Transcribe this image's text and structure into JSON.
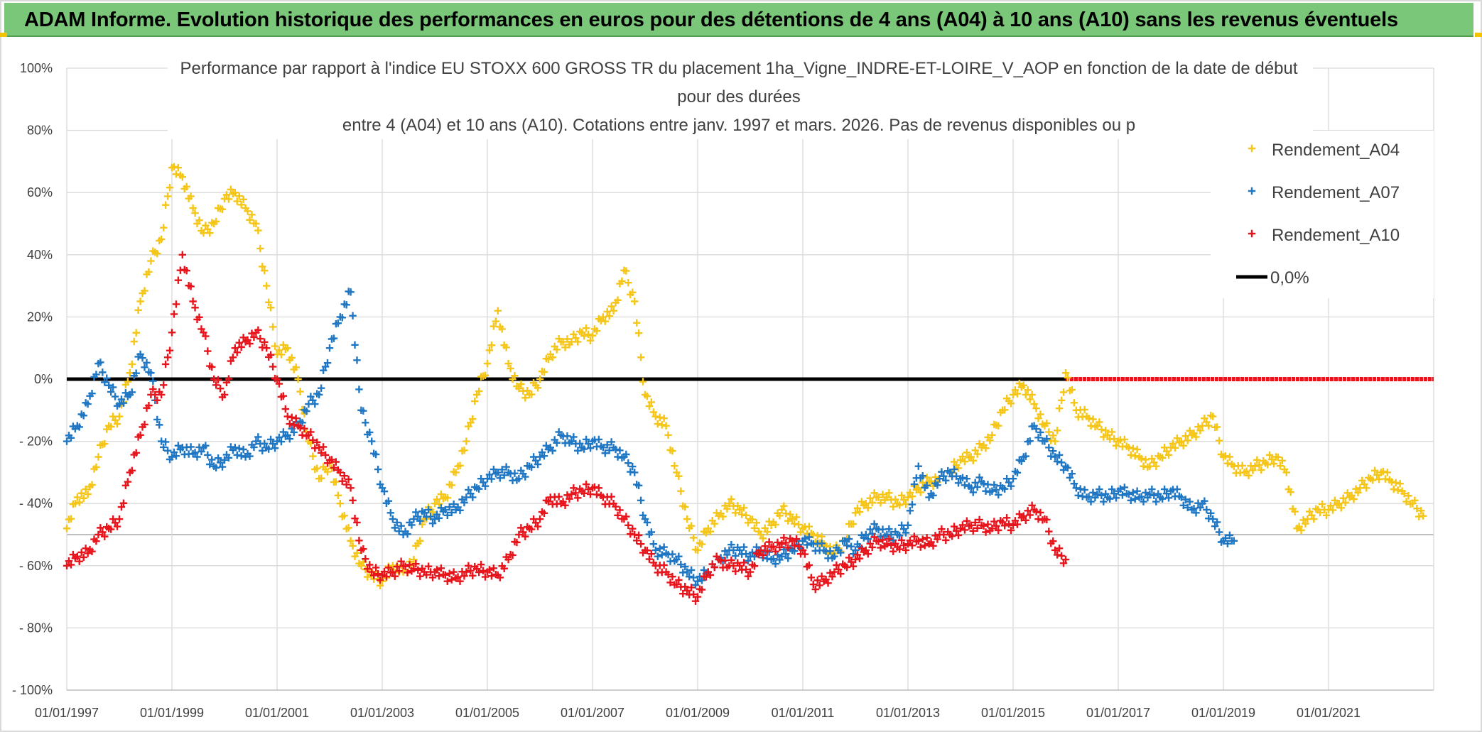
{
  "header": {
    "title": "ADAM Informe. Evolution historique des performances en euros pour des détentions de 4 ans (A04) à 10 ans (A10) sans les revenus éventuels"
  },
  "colors": {
    "banner": "#7ac77a",
    "a04": "#f5c518",
    "a07": "#1f77c4",
    "a10": "#e8141c",
    "zero": "#000000",
    "grid": "#d9d9d9"
  },
  "chart_data": {
    "type": "scatter",
    "title_lines": [
      "Performance par rapport à l'indice EU STOXX 600 GROSS TR  du placement 1ha_Vigne_INDRE-ET-LOIRE_V_AOP en fonction de la date de début",
      "pour des durées",
      "entre 4 (A04) et 10 ans (A10). Cotations entre janv. 1997 et mars. 2026. Pas de revenus disponibles ou p"
    ],
    "xlabel": "",
    "ylabel": "",
    "x_range": [
      1997.0,
      2023.0
    ],
    "ylim": [
      -100,
      100
    ],
    "y_ticks": [
      {
        "value": 100,
        "label": "100%"
      },
      {
        "value": 80,
        "label": "80%"
      },
      {
        "value": 60,
        "label": "60%"
      },
      {
        "value": 40,
        "label": "40%"
      },
      {
        "value": 20,
        "label": "20%"
      },
      {
        "value": 0,
        "label": "0%"
      },
      {
        "value": -20,
        "label": "- 20%"
      },
      {
        "value": -40,
        "label": "- 40%"
      },
      {
        "value": -60,
        "label": "- 60%"
      },
      {
        "value": -80,
        "label": "- 80%"
      },
      {
        "value": -100,
        "label": "- 100%"
      }
    ],
    "x_ticks": [
      {
        "value": 1997.0,
        "label": "01/01/1997"
      },
      {
        "value": 1999.0,
        "label": "01/01/1999"
      },
      {
        "value": 2001.0,
        "label": "01/01/2001"
      },
      {
        "value": 2003.0,
        "label": "01/01/2003"
      },
      {
        "value": 2005.0,
        "label": "01/01/2005"
      },
      {
        "value": 2007.0,
        "label": "01/01/2007"
      },
      {
        "value": 2009.0,
        "label": "01/01/2009"
      },
      {
        "value": 2011.0,
        "label": "01/01/2011"
      },
      {
        "value": 2013.0,
        "label": "01/01/2013"
      },
      {
        "value": 2015.0,
        "label": "01/01/2015"
      },
      {
        "value": 2017.0,
        "label": "01/01/2017"
      },
      {
        "value": 2019.0,
        "label": "01/01/2019"
      },
      {
        "value": 2021.0,
        "label": "01/01/2021"
      }
    ],
    "legend_position": "top-right",
    "series": [
      {
        "name": "Rendement_A04",
        "color": "#f5c518",
        "x": [
          1997.0,
          1997.2,
          1997.4,
          1997.6,
          1997.8,
          1998.0,
          1998.2,
          1998.4,
          1998.6,
          1998.8,
          1999.0,
          1999.2,
          1999.4,
          1999.6,
          1999.8,
          2000.0,
          2000.2,
          2000.4,
          2000.6,
          2000.8,
          2001.0,
          2001.2,
          2001.4,
          2001.6,
          2001.8,
          2002.0,
          2002.2,
          2002.4,
          2002.6,
          2002.8,
          2003.0,
          2003.2,
          2003.4,
          2003.6,
          2003.8,
          2004.0,
          2004.2,
          2004.4,
          2004.6,
          2004.8,
          2005.0,
          2005.2,
          2005.4,
          2005.6,
          2005.8,
          2006.0,
          2006.2,
          2006.4,
          2006.6,
          2006.8,
          2007.0,
          2007.2,
          2007.4,
          2007.6,
          2007.8,
          2008.0,
          2008.2,
          2008.4,
          2008.6,
          2008.8,
          2009.0,
          2009.2,
          2009.4,
          2009.6,
          2009.8,
          2010.0,
          2010.2,
          2010.4,
          2010.6,
          2010.8,
          2011.0,
          2011.2,
          2011.4,
          2011.6,
          2011.8,
          2012.0,
          2012.2,
          2012.4,
          2012.6,
          2012.8,
          2013.0,
          2013.2,
          2013.4,
          2013.6,
          2013.8,
          2014.0,
          2014.2,
          2014.4,
          2014.6,
          2014.8,
          2015.0,
          2015.2,
          2015.4,
          2015.6,
          2015.8,
          2016.0,
          2016.2,
          2016.4,
          2016.6,
          2016.8,
          2017.0,
          2017.2,
          2017.4,
          2017.6,
          2017.8,
          2018.0,
          2018.2,
          2018.4,
          2018.6,
          2018.8,
          2019.0,
          2019.2,
          2019.4,
          2019.6,
          2019.8,
          2020.0,
          2020.2,
          2020.4,
          2020.6,
          2020.8,
          2021.0,
          2021.2,
          2021.4,
          2021.6,
          2021.8,
          2022.0,
          2022.2,
          2022.4,
          2022.6,
          2022.8
        ],
        "values": [
          -48,
          -38,
          -37,
          -25,
          -15,
          -12,
          2,
          25,
          38,
          45,
          68,
          65,
          55,
          47,
          50,
          58,
          60,
          55,
          50,
          30,
          8,
          10,
          0,
          -20,
          -32,
          -27,
          -40,
          -52,
          -60,
          -63,
          -65,
          -60,
          -62,
          -58,
          -45,
          -40,
          -38,
          -30,
          -20,
          -5,
          5,
          22,
          5,
          -3,
          -5,
          0,
          8,
          12,
          12,
          15,
          14,
          20,
          22,
          35,
          25,
          -5,
          -12,
          -15,
          -30,
          -45,
          -55,
          -48,
          -44,
          -40,
          -42,
          -45,
          -50,
          -47,
          -42,
          -45,
          -48,
          -50,
          -53,
          -56,
          -52,
          -43,
          -40,
          -38,
          -38,
          -40,
          -38,
          -35,
          -33,
          -32,
          -30,
          -26,
          -25,
          -22,
          -18,
          -10,
          -5,
          -2,
          -8,
          -15,
          -20,
          2,
          -10,
          -12,
          -15,
          -18,
          -20,
          -22,
          -25,
          -28,
          -25,
          -22,
          -20,
          -18,
          -15,
          -12,
          -25,
          -28,
          -30,
          -28,
          -27,
          -25,
          -30,
          -48,
          -45,
          -42,
          -42,
          -40,
          -38,
          -35,
          -32,
          -30,
          -33,
          -36,
          -40,
          -44
        ]
      },
      {
        "name": "Rendement_A07",
        "color": "#1f77c4",
        "x": [
          1997.0,
          1997.2,
          1997.4,
          1997.6,
          1997.8,
          1998.0,
          1998.2,
          1998.4,
          1998.6,
          1998.8,
          1999.0,
          1999.2,
          1999.4,
          1999.6,
          1999.8,
          2000.0,
          2000.2,
          2000.4,
          2000.6,
          2000.8,
          2001.0,
          2001.2,
          2001.4,
          2001.6,
          2001.8,
          2002.0,
          2002.2,
          2002.4,
          2002.6,
          2002.8,
          2003.0,
          2003.2,
          2003.4,
          2003.6,
          2003.8,
          2004.0,
          2004.2,
          2004.4,
          2004.6,
          2004.8,
          2005.0,
          2005.2,
          2005.4,
          2005.6,
          2005.8,
          2006.0,
          2006.2,
          2006.4,
          2006.6,
          2006.8,
          2007.0,
          2007.2,
          2007.4,
          2007.6,
          2007.8,
          2008.0,
          2008.2,
          2008.4,
          2008.6,
          2008.8,
          2009.0,
          2009.2,
          2009.4,
          2009.6,
          2009.8,
          2010.0,
          2010.2,
          2010.4,
          2010.6,
          2010.8,
          2011.0,
          2011.2,
          2011.4,
          2011.6,
          2011.8,
          2012.0,
          2012.2,
          2012.4,
          2012.6,
          2012.8,
          2013.0,
          2013.2,
          2013.4,
          2013.6,
          2013.8,
          2014.0,
          2014.2,
          2014.4,
          2014.6,
          2014.8,
          2015.0,
          2015.2,
          2015.4,
          2015.6,
          2015.8,
          2016.0,
          2016.2,
          2016.4,
          2016.6,
          2016.8,
          2017.0,
          2017.2,
          2017.4,
          2017.6,
          2017.8,
          2018.0,
          2018.2,
          2018.4,
          2018.6,
          2018.8,
          2019.0,
          2019.2
        ],
        "values": [
          -20,
          -15,
          -8,
          5,
          -2,
          -8,
          -5,
          8,
          2,
          -20,
          -25,
          -22,
          -24,
          -22,
          -28,
          -26,
          -22,
          -25,
          -20,
          -22,
          -20,
          -18,
          -15,
          -8,
          -5,
          10,
          20,
          28,
          -10,
          -20,
          -35,
          -45,
          -50,
          -45,
          -43,
          -45,
          -42,
          -42,
          -38,
          -35,
          -32,
          -30,
          -30,
          -32,
          -28,
          -25,
          -22,
          -18,
          -20,
          -22,
          -20,
          -22,
          -22,
          -25,
          -30,
          -45,
          -55,
          -56,
          -58,
          -62,
          -65,
          -62,
          -58,
          -55,
          -55,
          -57,
          -55,
          -58,
          -57,
          -55,
          -52,
          -53,
          -55,
          -57,
          -52,
          -55,
          -50,
          -48,
          -50,
          -50,
          -47,
          -28,
          -38,
          -32,
          -30,
          -32,
          -35,
          -33,
          -36,
          -35,
          -32,
          -25,
          -15,
          -20,
          -25,
          -28,
          -35,
          -38,
          -37,
          -38,
          -36,
          -37,
          -38,
          -37,
          -38,
          -36,
          -38,
          -42,
          -40,
          -45,
          -52,
          -52
        ]
      },
      {
        "name": "Rendement_A10",
        "color": "#e8141c",
        "x": [
          1997.0,
          1997.2,
          1997.4,
          1997.6,
          1997.8,
          1998.0,
          1998.2,
          1998.4,
          1998.6,
          1998.8,
          1999.0,
          1999.2,
          1999.4,
          1999.6,
          1999.8,
          2000.0,
          2000.2,
          2000.4,
          2000.6,
          2000.8,
          2001.0,
          2001.2,
          2001.4,
          2001.6,
          2001.8,
          2002.0,
          2002.2,
          2002.4,
          2002.6,
          2002.8,
          2003.0,
          2003.2,
          2003.4,
          2003.6,
          2003.8,
          2004.0,
          2004.2,
          2004.4,
          2004.6,
          2004.8,
          2005.0,
          2005.2,
          2005.4,
          2005.6,
          2005.8,
          2006.0,
          2006.2,
          2006.4,
          2006.6,
          2006.8,
          2007.0,
          2007.2,
          2007.4,
          2007.6,
          2007.8,
          2008.0,
          2008.2,
          2008.4,
          2008.6,
          2008.8,
          2009.0,
          2009.2,
          2009.4,
          2009.6,
          2009.8,
          2010.0,
          2010.2,
          2010.4,
          2010.6,
          2010.8,
          2011.0,
          2011.2,
          2011.4,
          2011.6,
          2011.8,
          2012.0,
          2012.2,
          2012.4,
          2012.6,
          2012.8,
          2013.0,
          2013.2,
          2013.4,
          2013.6,
          2013.8,
          2014.0,
          2014.2,
          2014.4,
          2014.6,
          2014.8,
          2015.0,
          2015.2,
          2015.4,
          2015.6,
          2015.8,
          2016.0
        ],
        "values": [
          -60,
          -57,
          -56,
          -50,
          -48,
          -45,
          -30,
          -18,
          -5,
          -5,
          15,
          40,
          25,
          15,
          0,
          -5,
          10,
          12,
          15,
          10,
          0,
          -12,
          -15,
          -18,
          -22,
          -26,
          -30,
          -35,
          -55,
          -62,
          -63,
          -62,
          -60,
          -61,
          -62,
          -62,
          -63,
          -64,
          -62,
          -61,
          -62,
          -63,
          -58,
          -50,
          -48,
          -45,
          -38,
          -40,
          -37,
          -36,
          -35,
          -38,
          -40,
          -45,
          -50,
          -55,
          -60,
          -62,
          -66,
          -68,
          -70,
          -62,
          -58,
          -60,
          -60,
          -62,
          -55,
          -54,
          -53,
          -52,
          -55,
          -66,
          -65,
          -62,
          -60,
          -58,
          -55,
          -52,
          -53,
          -54,
          -53,
          -52,
          -53,
          -50,
          -50,
          -48,
          -47,
          -47,
          -48,
          -46,
          -47,
          -44,
          -42,
          -45,
          -55,
          -58
        ]
      },
      {
        "name": "0,0%",
        "color": "#000000",
        "x": [
          1997.0,
          2016.0
        ],
        "values": [
          0,
          0
        ]
      }
    ],
    "extra_series": [
      {
        "name": "zero-overlay",
        "color": "#e8141c",
        "x": [
          2016.0,
          2023.0
        ],
        "values": [
          0,
          0
        ]
      }
    ]
  },
  "legend": {
    "items": [
      {
        "label": "Rendement_A04",
        "color": "#f5c518",
        "marker": "plus"
      },
      {
        "label": "Rendement_A07",
        "color": "#1f77c4",
        "marker": "plus"
      },
      {
        "label": "Rendement_A10",
        "color": "#e8141c",
        "marker": "plus"
      },
      {
        "label": "0,0%",
        "color": "#000000",
        "marker": "line"
      }
    ]
  }
}
